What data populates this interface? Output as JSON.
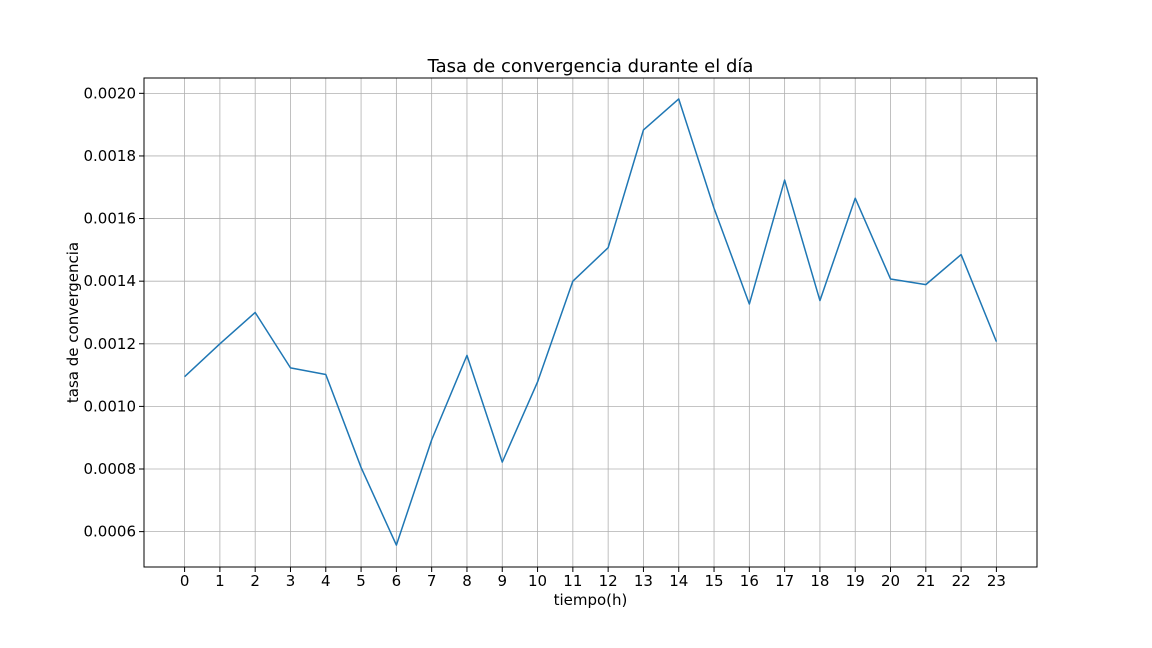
{
  "chart_data": {
    "type": "line",
    "title": "Tasa de convergencia durante el día",
    "xlabel": "tiempo(h)",
    "ylabel": "tasa de convergencia",
    "x": [
      0,
      1,
      2,
      3,
      4,
      5,
      6,
      7,
      8,
      9,
      10,
      11,
      12,
      13,
      14,
      15,
      16,
      17,
      18,
      19,
      20,
      21,
      22,
      23
    ],
    "x_tick_labels": [
      "0",
      "1",
      "2",
      "3",
      "4",
      "5",
      "6",
      "7",
      "8",
      "9",
      "10",
      "11",
      "12",
      "13",
      "14",
      "15",
      "16",
      "17",
      "18",
      "19",
      "20",
      "21",
      "22",
      "23"
    ],
    "y_ticks": [
      0.0006,
      0.0008,
      0.001,
      0.0012,
      0.0014,
      0.0016,
      0.0018,
      0.002
    ],
    "y_tick_labels": [
      "0.0006",
      "0.0008",
      "0.0010",
      "0.0012",
      "0.0014",
      "0.0016",
      "0.0018",
      "0.0020"
    ],
    "xlim": [
      -1.15,
      24.15
    ],
    "ylim": [
      0.000487,
      0.002049
    ],
    "grid": true,
    "series": [
      {
        "color": "#1f77b4",
        "values": [
          0.001095,
          0.0012,
          0.0013,
          0.001123,
          0.001102,
          0.000805,
          0.000557,
          0.000893,
          0.001163,
          0.000822,
          0.001078,
          0.0014,
          0.001507,
          0.001883,
          0.001982,
          0.001633,
          0.001327,
          0.001723,
          0.001338,
          0.001665,
          0.001407,
          0.001389,
          0.001485,
          0.001207
        ]
      }
    ]
  }
}
